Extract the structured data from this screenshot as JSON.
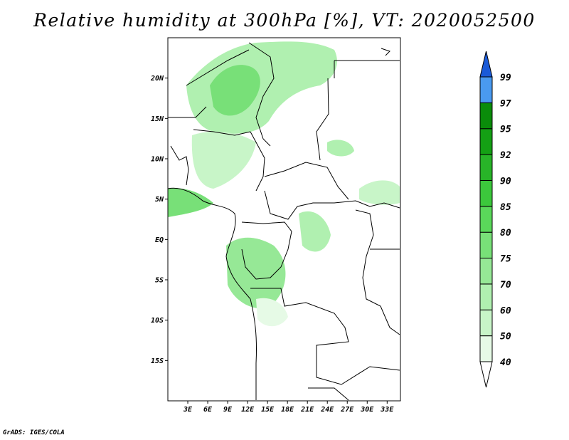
{
  "title": "Relative humidity at 300hPa [%], VT: 2020052500",
  "credit": "GrADS: IGES/COLA",
  "map": {
    "lat_range": [
      -20,
      25
    ],
    "lon_range": [
      0,
      35
    ],
    "lat_ticks": [
      {
        "value": 20,
        "label": "20N"
      },
      {
        "value": 15,
        "label": "15N"
      },
      {
        "value": 10,
        "label": "10N"
      },
      {
        "value": 5,
        "label": "5N"
      },
      {
        "value": 0,
        "label": "EQ"
      },
      {
        "value": -5,
        "label": "5S"
      },
      {
        "value": -10,
        "label": "10S"
      },
      {
        "value": -15,
        "label": "15S"
      }
    ],
    "lon_ticks": [
      {
        "value": 3,
        "label": "3E"
      },
      {
        "value": 6,
        "label": "6E"
      },
      {
        "value": 9,
        "label": "9E"
      },
      {
        "value": 12,
        "label": "12E"
      },
      {
        "value": 15,
        "label": "15E"
      },
      {
        "value": 18,
        "label": "18E"
      },
      {
        "value": 21,
        "label": "21E"
      },
      {
        "value": 24,
        "label": "24E"
      },
      {
        "value": 27,
        "label": "27E"
      },
      {
        "value": 30,
        "label": "30E"
      },
      {
        "value": 33,
        "label": "33E"
      }
    ]
  },
  "colorbar": {
    "levels": [
      {
        "label": "40",
        "color": "#e6fae6"
      },
      {
        "label": "50",
        "color": "#c8f5c8"
      },
      {
        "label": "60",
        "color": "#b0f0b0"
      },
      {
        "label": "70",
        "color": "#96e896"
      },
      {
        "label": "75",
        "color": "#78e078"
      },
      {
        "label": "80",
        "color": "#5ad85a"
      },
      {
        "label": "85",
        "color": "#3cc83c"
      },
      {
        "label": "90",
        "color": "#28b428"
      },
      {
        "label": "92",
        "color": "#14a014"
      },
      {
        "label": "95",
        "color": "#0a8c0a"
      },
      {
        "label": "97",
        "color": "#4a9af0"
      },
      {
        "label": "99",
        "color": "#2a7ae8"
      }
    ],
    "under_color": "#ffffff",
    "over_color": "#1a5ad8"
  }
}
